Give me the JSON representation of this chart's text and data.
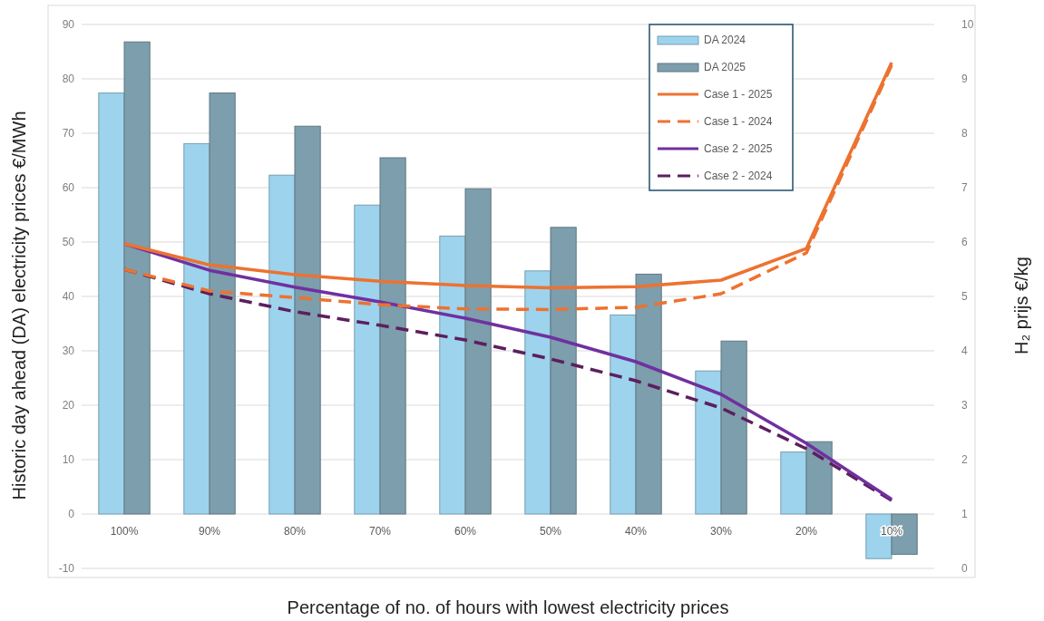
{
  "chart_data": {
    "type": "bar",
    "xlabel": "Percentage of no. of hours with lowest electricity prices",
    "ylabel": "Historic day ahead (DA) electricity prices €/MWh",
    "y2label": "H₂ prijs €/kg",
    "categories": [
      "100%",
      "90%",
      "80%",
      "70%",
      "60%",
      "50%",
      "40%",
      "30%",
      "20%",
      "10%"
    ],
    "series": [
      {
        "name": "DA 2024",
        "color": "#9dd3ec",
        "values": [
          77.4,
          68.1,
          62.3,
          56.8,
          51.1,
          44.7,
          36.6,
          26.3,
          11.4,
          -8.2
        ]
      },
      {
        "name": "DA 2025",
        "color": "#7d9eac",
        "values": [
          86.8,
          77.4,
          71.3,
          65.5,
          59.8,
          52.7,
          44.1,
          31.8,
          13.3,
          -7.4
        ]
      },
      {
        "name": "Case 1 - 2025",
        "type": "line",
        "axis": "y2",
        "line_style": "solid",
        "color": "#ed7230",
        "values": [
          5.97,
          5.58,
          5.4,
          5.28,
          5.2,
          5.16,
          5.18,
          5.3,
          5.88,
          9.3
        ]
      },
      {
        "name": "Case 1 - 2024",
        "type": "line",
        "axis": "y2",
        "line_style": "dashed",
        "color": "#ed7230",
        "values": [
          5.5,
          5.1,
          4.98,
          4.85,
          4.77,
          4.76,
          4.8,
          5.05,
          5.8,
          9.25
        ]
      },
      {
        "name": "Case 2 - 2025",
        "type": "line",
        "axis": "y2",
        "line_style": "solid",
        "color": "#7030a0",
        "values": [
          5.97,
          5.48,
          5.17,
          4.9,
          4.6,
          4.25,
          3.8,
          3.2,
          2.3,
          1.27
        ]
      },
      {
        "name": "Case 2 - 2024",
        "type": "line",
        "axis": "y2",
        "line_style": "dashed",
        "color": "#5c1f5e",
        "values": [
          5.5,
          5.05,
          4.72,
          4.47,
          4.2,
          3.85,
          3.45,
          2.95,
          2.2,
          1.25
        ]
      }
    ],
    "ylim": [
      -10,
      90
    ],
    "yticks": [
      -10,
      0,
      10,
      20,
      30,
      40,
      50,
      60,
      70,
      80,
      90
    ],
    "y2lim": [
      0,
      10
    ],
    "y2ticks": [
      0,
      1,
      2,
      3,
      4,
      5,
      6,
      7,
      8,
      9,
      10
    ],
    "grid": "y",
    "legend": "top right",
    "marker": "none"
  }
}
